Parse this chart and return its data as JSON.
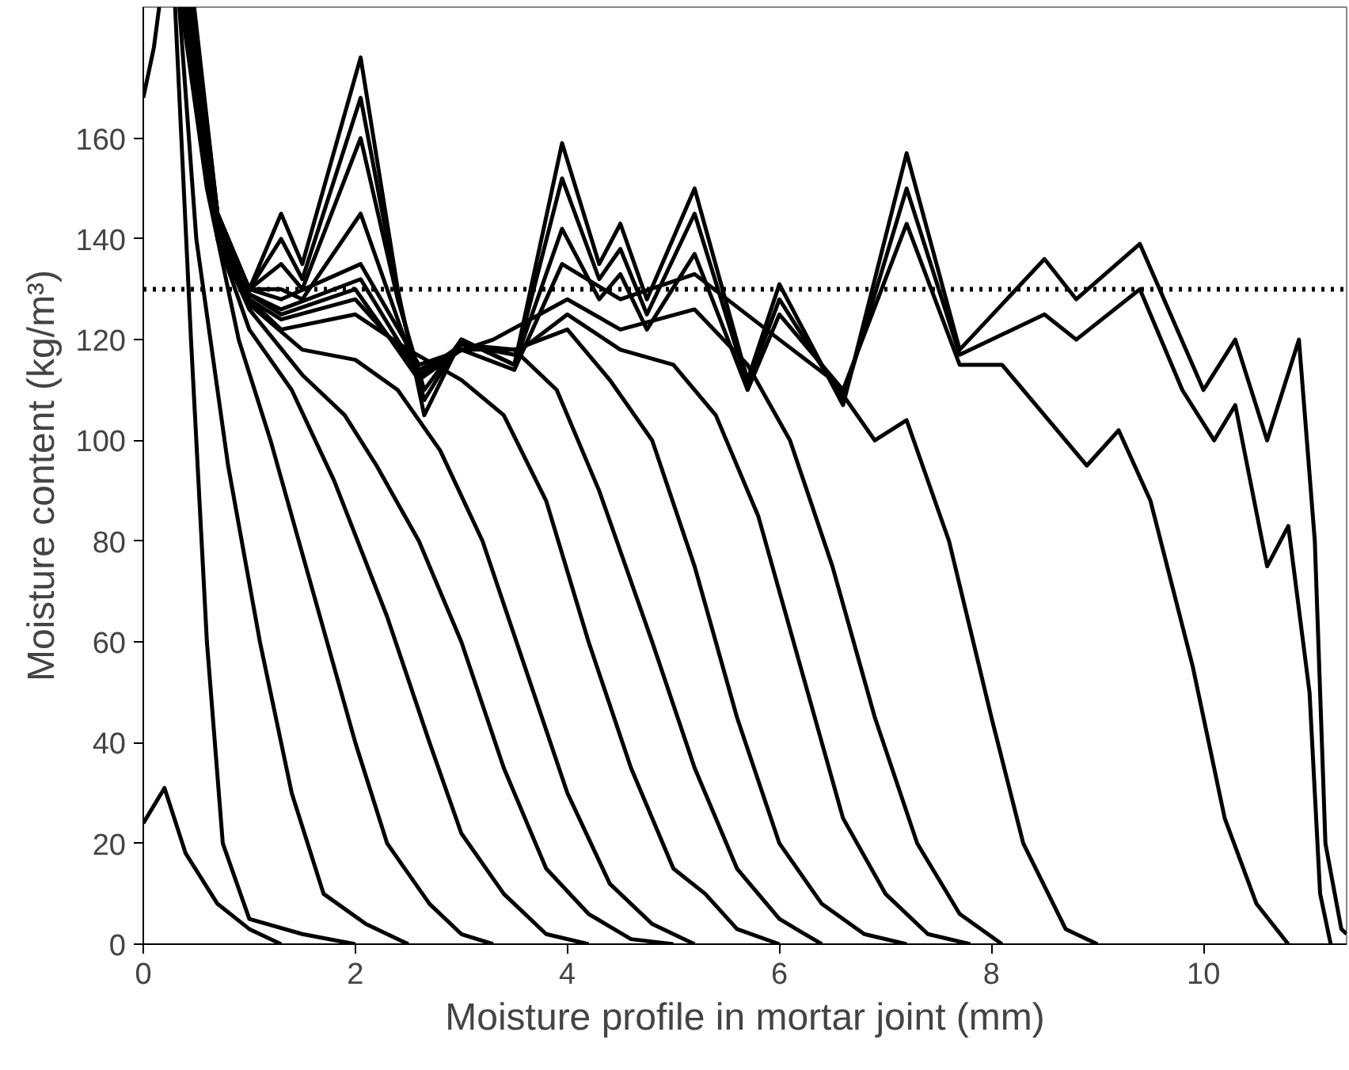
{
  "chart_data": {
    "type": "line",
    "xlabel": "Moisture profile in mortar joint (mm)",
    "ylabel": "Moisture content (kg/m³)",
    "xlim": [
      0,
      11.35
    ],
    "ylim": [
      0,
      186
    ],
    "xticks": [
      0,
      2,
      4,
      6,
      8,
      10
    ],
    "yticks": [
      0,
      20,
      40,
      60,
      80,
      100,
      120,
      140,
      160
    ],
    "grid": false,
    "line_style": "solid",
    "marker": "none",
    "ref_lines": [
      {
        "axis": "y",
        "value": 130,
        "label": null,
        "color": "#000000",
        "line_style": "dotted"
      }
    ],
    "series": [
      {
        "color": "#000000",
        "x": [
          0,
          0.2,
          0.4,
          0.7,
          1.0,
          1.3
        ],
        "values": [
          24,
          31,
          18,
          8,
          3,
          0
        ]
      },
      {
        "color": "#000000",
        "x": [
          0,
          0.1,
          0.15
        ],
        "values": [
          168,
          178,
          186
        ]
      },
      {
        "color": "#000000",
        "x": [
          0.3,
          0.45,
          0.6,
          0.75,
          1.0,
          1.5,
          2.0
        ],
        "values": [
          186,
          120,
          60,
          20,
          5,
          2,
          0
        ]
      },
      {
        "color": "#000000",
        "x": [
          0.34,
          0.5,
          0.8,
          1.1,
          1.4,
          1.7,
          2.1,
          2.5
        ],
        "values": [
          186,
          140,
          95,
          60,
          30,
          10,
          4,
          0
        ]
      },
      {
        "color": "#000000",
        "x": [
          0.36,
          0.6,
          0.9,
          1.2,
          1.6,
          2.0,
          2.3,
          2.7,
          3.0,
          3.3
        ],
        "values": [
          186,
          150,
          120,
          100,
          70,
          40,
          20,
          8,
          2,
          0
        ]
      },
      {
        "color": "#000000",
        "x": [
          0.37,
          0.7,
          1.0,
          1.4,
          1.8,
          2.3,
          2.7,
          3.0,
          3.4,
          3.8,
          4.2
        ],
        "values": [
          186,
          140,
          122,
          110,
          92,
          65,
          40,
          22,
          10,
          2,
          0
        ]
      },
      {
        "color": "#000000",
        "x": [
          0.38,
          0.7,
          1.0,
          1.5,
          1.9,
          2.2,
          2.6,
          3.0,
          3.4,
          3.8,
          4.2,
          4.6,
          5.0
        ],
        "values": [
          186,
          140,
          126,
          113,
          105,
          95,
          80,
          60,
          35,
          15,
          6,
          1,
          0
        ]
      },
      {
        "color": "#000000",
        "x": [
          0.39,
          0.7,
          1.0,
          1.5,
          2.0,
          2.4,
          2.8,
          3.2,
          3.6,
          4.0,
          4.4,
          4.8,
          5.2
        ],
        "values": [
          186,
          142,
          127,
          118,
          116,
          110,
          98,
          80,
          55,
          30,
          12,
          4,
          0
        ]
      },
      {
        "color": "#000000",
        "x": [
          0.4,
          0.7,
          1.0,
          1.3,
          2.0,
          2.5,
          3.0,
          3.4,
          3.8,
          4.2,
          4.6,
          5.0,
          5.3,
          5.6,
          6.0
        ],
        "values": [
          186,
          143,
          128,
          122,
          125,
          118,
          112,
          105,
          88,
          60,
          35,
          15,
          10,
          3,
          0
        ]
      },
      {
        "color": "#000000",
        "x": [
          0.41,
          0.7,
          1.0,
          1.3,
          2.0,
          2.6,
          3.0,
          3.5,
          3.9,
          4.3,
          4.8,
          5.2,
          5.6,
          6.0,
          6.4
        ],
        "values": [
          186,
          143,
          128,
          124,
          128,
          114,
          118,
          118,
          110,
          90,
          60,
          35,
          15,
          5,
          0
        ]
      },
      {
        "color": "#000000",
        "x": [
          0.42,
          0.7,
          1.0,
          1.3,
          2.0,
          2.6,
          3.0,
          3.5,
          4.0,
          4.4,
          4.8,
          5.2,
          5.6,
          6.0,
          6.4,
          6.8,
          7.2
        ],
        "values": [
          186,
          144,
          129,
          125,
          130,
          112,
          119,
          118,
          122,
          112,
          100,
          75,
          45,
          20,
          8,
          2,
          0
        ]
      },
      {
        "color": "#000000",
        "x": [
          0.43,
          0.7,
          1.0,
          1.3,
          2.05,
          2.6,
          3.0,
          3.5,
          4.0,
          4.5,
          5.0,
          5.4,
          5.8,
          6.2,
          6.6,
          7.0,
          7.4,
          7.8
        ],
        "values": [
          186,
          144,
          129,
          126,
          132,
          113,
          119,
          117,
          125,
          118,
          115,
          105,
          85,
          55,
          25,
          10,
          2,
          0
        ]
      },
      {
        "color": "#000000",
        "x": [
          0.44,
          0.7,
          1.0,
          1.3,
          2.05,
          2.6,
          3.3,
          4.0,
          4.5,
          5.2,
          5.7,
          6.1,
          6.5,
          6.9,
          7.3,
          7.7,
          8.1
        ],
        "values": [
          186,
          145,
          130,
          128,
          135,
          115,
          120,
          128,
          122,
          126,
          115,
          100,
          75,
          45,
          20,
          6,
          0
        ]
      },
      {
        "color": "#000000",
        "x": [
          0.45,
          0.7,
          1.0,
          1.3,
          1.5,
          2.05,
          2.6,
          3.0,
          3.5,
          3.95,
          4.5,
          5.2,
          6.0,
          6.5,
          6.9,
          7.2,
          7.6,
          8.0,
          8.3,
          8.7,
          9.0
        ],
        "values": [
          186,
          145,
          130,
          130,
          128,
          145,
          112,
          118,
          114,
          135,
          128,
          133,
          120,
          112,
          100,
          104,
          80,
          45,
          20,
          3,
          0
        ]
      },
      {
        "color": "#000000",
        "x": [
          0.46,
          0.7,
          1.0,
          1.3,
          1.5,
          2.05,
          2.4,
          2.65,
          3.0,
          3.5,
          3.95,
          4.3,
          4.5,
          4.75,
          5.2,
          5.7,
          6.0,
          6.6,
          7.2,
          7.7,
          8.1,
          8.5,
          8.9,
          9.2,
          9.5,
          9.9,
          10.2,
          10.5,
          10.8
        ],
        "values": [
          186,
          145,
          130,
          135,
          130,
          160,
          128,
          110,
          120,
          115,
          142,
          128,
          133,
          122,
          137,
          110,
          125,
          110,
          143,
          115,
          115,
          105,
          95,
          102,
          88,
          55,
          25,
          8,
          0
        ]
      },
      {
        "color": "#000000",
        "x": [
          0.47,
          0.7,
          1.0,
          1.3,
          1.5,
          2.05,
          2.4,
          2.65,
          3.0,
          3.5,
          3.95,
          4.3,
          4.5,
          4.75,
          5.2,
          5.7,
          6.0,
          6.6,
          7.2,
          7.7,
          8.5,
          8.8,
          9.4,
          9.8,
          10.1,
          10.3,
          10.6,
          10.8,
          11.0,
          11.1,
          11.2
        ],
        "values": [
          186,
          145,
          130,
          140,
          132,
          168,
          129,
          108,
          120,
          115,
          152,
          132,
          138,
          125,
          145,
          111,
          128,
          108,
          150,
          117,
          125,
          120,
          130,
          110,
          100,
          107,
          75,
          83,
          50,
          10,
          0
        ]
      },
      {
        "color": "#000000",
        "x": [
          0.48,
          0.7,
          1.0,
          1.3,
          1.5,
          2.05,
          2.4,
          2.65,
          3.0,
          3.5,
          3.95,
          4.3,
          4.5,
          4.75,
          5.2,
          5.7,
          6.0,
          6.6,
          7.2,
          7.7,
          8.5,
          8.8,
          9.4,
          10.0,
          10.3,
          10.6,
          10.9,
          11.05,
          11.15,
          11.3,
          11.35
        ],
        "values": [
          186,
          145,
          130,
          145,
          135,
          176,
          130,
          105,
          120,
          115,
          159,
          135,
          143,
          128,
          150,
          112,
          131,
          107,
          157,
          118,
          136,
          128,
          139,
          110,
          120,
          100,
          120,
          80,
          20,
          3,
          2
        ]
      }
    ]
  }
}
